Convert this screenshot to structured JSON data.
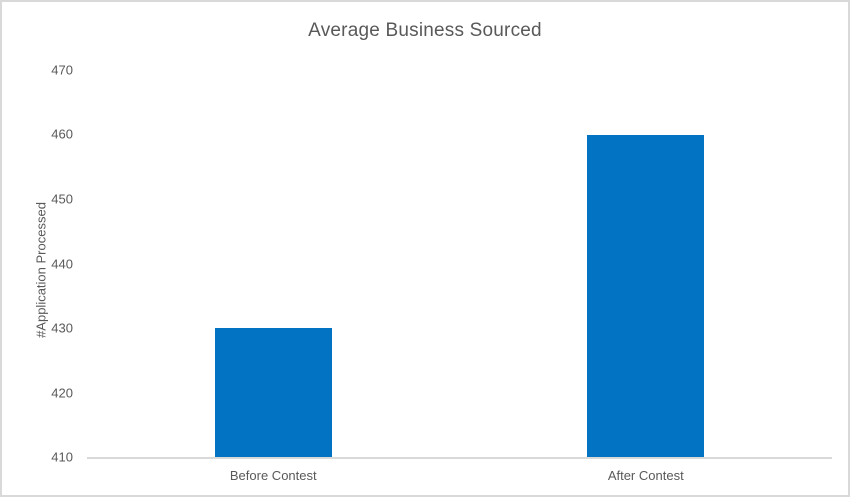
{
  "figure": {
    "background": "#FFFFFF",
    "border_color": "#D9D9D9"
  },
  "chart_data": {
    "type": "bar",
    "title": "Average Business Sourced",
    "xlabel": "",
    "ylabel": "#Application Processed",
    "categories": [
      "Before Contest",
      "After Contest"
    ],
    "series": [
      {
        "name": "Average Business Sourced",
        "values": [
          430,
          460
        ]
      }
    ],
    "values": [
      430,
      460
    ],
    "ylim": [
      410,
      470
    ],
    "ytick_interval": 10,
    "yticks_top_to_bottom": [
      470,
      460,
      450,
      440,
      430,
      420,
      410
    ],
    "grid": false,
    "legend_position": "none",
    "bar_color": "#0272C3",
    "axis_line_color": "#D9D9D9",
    "text_color": "#595959"
  }
}
